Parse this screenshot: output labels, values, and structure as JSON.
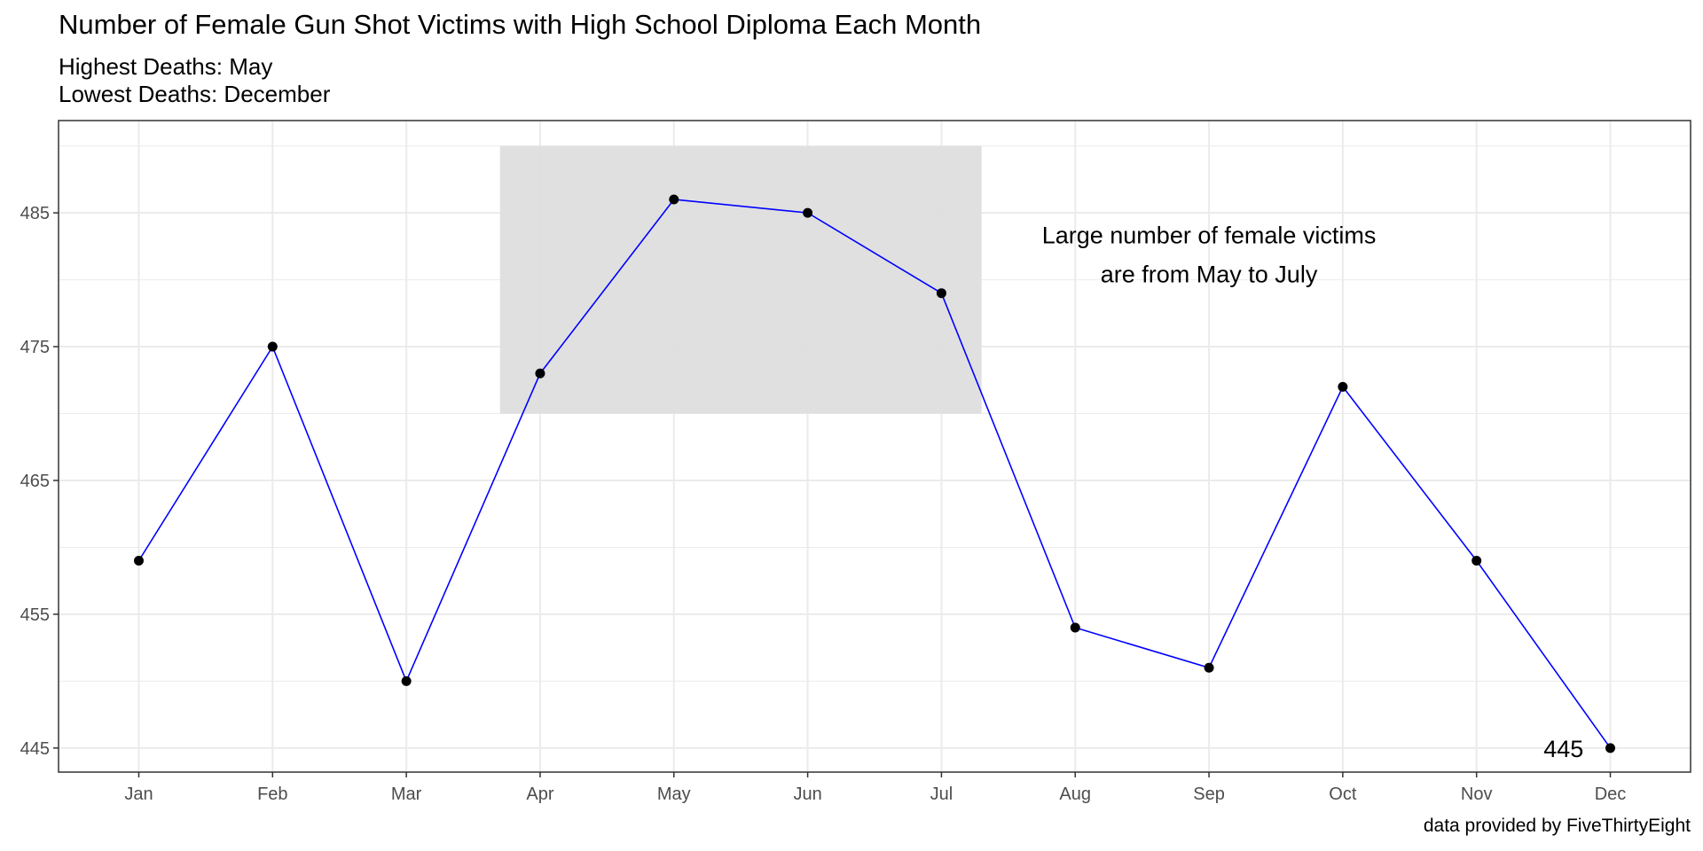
{
  "chart_data": {
    "type": "line",
    "title": "Number of Female Gun Shot Victims with High School Diploma Each Month",
    "subtitle_lines": [
      "Highest Deaths: May",
      "Lowest Deaths: December"
    ],
    "caption": "data provided by FiveThirtyEight",
    "xlabel": "",
    "ylabel": "",
    "categories": [
      "Jan",
      "Feb",
      "Mar",
      "Apr",
      "May",
      "Jun",
      "Jul",
      "Aug",
      "Sep",
      "Oct",
      "Nov",
      "Dec"
    ],
    "values": [
      459,
      475,
      450,
      473,
      486,
      485,
      479,
      454,
      451,
      472,
      459,
      445
    ],
    "ylim": [
      443.2,
      491.9
    ],
    "yticks": [
      445,
      455,
      465,
      475,
      485
    ],
    "grid": true,
    "line_color": "#0000ff",
    "point_color": "#000000",
    "highlight_rect": {
      "x_from": 3.7,
      "x_to": 7.3,
      "y_from": 470,
      "y_to": 490,
      "color": "#dedede"
    },
    "annotation": {
      "lines": [
        "Large number of female victims",
        "are from May to July"
      ],
      "x": 9,
      "y": 482
    },
    "value_label": {
      "text": "445",
      "x": 11.65,
      "y": 445
    }
  }
}
